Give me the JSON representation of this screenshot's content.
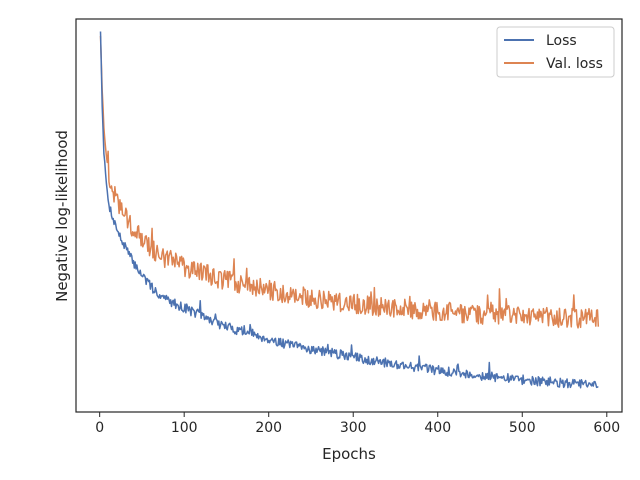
{
  "chart_data": {
    "type": "line",
    "title": "",
    "xlabel": "Epochs",
    "ylabel": "Negative log-likelihood",
    "xlim": [
      -28,
      618
    ],
    "xticks": [
      0,
      100,
      200,
      300,
      400,
      500,
      600
    ],
    "xtick_labels": [
      "0",
      "100",
      "200",
      "300",
      "400",
      "500",
      "600"
    ],
    "ylim": [
      0.0,
      1.0
    ],
    "yticks_shown": false,
    "grid": false,
    "legend_position": "top-right",
    "series": [
      {
        "name": "Loss",
        "color": "#4c72b0",
        "x": [
          1,
          3,
          5,
          8,
          10,
          12,
          15,
          18,
          20,
          25,
          30,
          35,
          40,
          50,
          60,
          70,
          80,
          90,
          100,
          120,
          140,
          160,
          180,
          200,
          225,
          250,
          275,
          300,
          325,
          350,
          375,
          400,
          425,
          450,
          475,
          500,
          525,
          550,
          575,
          590
        ],
        "values": [
          0.97,
          0.78,
          0.66,
          0.58,
          0.54,
          0.52,
          0.5,
          0.48,
          0.47,
          0.44,
          0.42,
          0.4,
          0.38,
          0.35,
          0.32,
          0.3,
          0.285,
          0.275,
          0.265,
          0.245,
          0.225,
          0.21,
          0.2,
          0.185,
          0.17,
          0.16,
          0.15,
          0.14,
          0.13,
          0.122,
          0.114,
          0.106,
          0.099,
          0.093,
          0.087,
          0.082,
          0.077,
          0.073,
          0.07,
          0.068
        ],
        "noise": 0.012
      },
      {
        "name": "Val. loss",
        "color": "#dd8452",
        "x": [
          1,
          3,
          5,
          8,
          10,
          12,
          15,
          18,
          20,
          25,
          30,
          35,
          40,
          50,
          60,
          70,
          80,
          90,
          100,
          120,
          140,
          160,
          180,
          200,
          225,
          250,
          275,
          300,
          325,
          350,
          375,
          400,
          425,
          450,
          475,
          500,
          525,
          550,
          575,
          590
        ],
        "values": [
          0.96,
          0.82,
          0.72,
          0.65,
          0.61,
          0.59,
          0.57,
          0.55,
          0.54,
          0.52,
          0.5,
          0.48,
          0.465,
          0.44,
          0.42,
          0.4,
          0.39,
          0.38,
          0.37,
          0.355,
          0.34,
          0.33,
          0.32,
          0.31,
          0.3,
          0.29,
          0.282,
          0.275,
          0.27,
          0.265,
          0.26,
          0.256,
          0.252,
          0.249,
          0.246,
          0.243,
          0.241,
          0.239,
          0.237,
          0.236
        ],
        "noise": 0.025
      }
    ]
  }
}
